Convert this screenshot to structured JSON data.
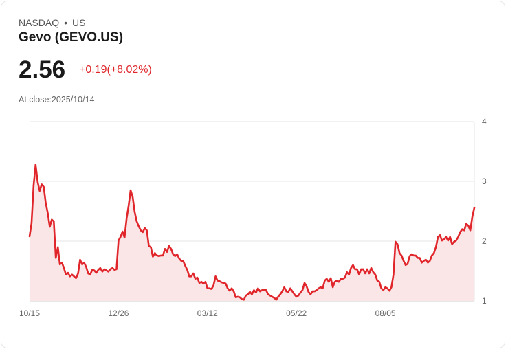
{
  "header": {
    "exchange": "NASDAQ",
    "separator": "•",
    "region": "US",
    "title": "Gevo (GEVO.US)",
    "price": "2.56",
    "change": "+0.19(+8.02%)",
    "close_label": "At close:2025/10/14"
  },
  "colors": {
    "line": "#e0262b",
    "fill": "#fbe6e7",
    "grid": "#e6e6e6"
  },
  "chart_data": {
    "type": "area",
    "title": "Gevo (GEVO.US)",
    "ylim": [
      1,
      4
    ],
    "yticks": [
      "4",
      "3",
      "2",
      "1"
    ],
    "ytick_values": [
      4,
      3,
      2,
      1
    ],
    "xticks": [
      "10/15",
      "12/26",
      "03/12",
      "05/22",
      "08/05"
    ],
    "xtick_fractions": [
      0,
      0.2,
      0.4,
      0.6,
      0.8
    ],
    "grid": true,
    "values": [
      2.08,
      2.3,
      2.93,
      3.28,
      2.99,
      2.84,
      2.95,
      2.91,
      2.64,
      2.47,
      2.24,
      2.36,
      2.33,
      1.72,
      1.9,
      1.61,
      1.64,
      1.55,
      1.44,
      1.47,
      1.41,
      1.44,
      1.41,
      1.38,
      1.46,
      1.69,
      1.61,
      1.64,
      1.57,
      1.46,
      1.44,
      1.52,
      1.51,
      1.47,
      1.52,
      1.55,
      1.49,
      1.53,
      1.51,
      1.49,
      1.53,
      1.55,
      1.52,
      1.53,
      2.01,
      2.07,
      2.16,
      2.06,
      2.38,
      2.59,
      2.85,
      2.74,
      2.49,
      2.33,
      2.25,
      2.18,
      2.15,
      2.22,
      2.18,
      1.92,
      1.9,
      1.74,
      1.8,
      1.76,
      1.75,
      1.76,
      1.76,
      1.87,
      1.82,
      1.92,
      1.87,
      1.78,
      1.75,
      1.78,
      1.71,
      1.67,
      1.67,
      1.59,
      1.52,
      1.41,
      1.41,
      1.46,
      1.37,
      1.39,
      1.3,
      1.32,
      1.29,
      1.32,
      1.21,
      1.21,
      1.2,
      1.26,
      1.41,
      1.34,
      1.33,
      1.31,
      1.3,
      1.29,
      1.21,
      1.17,
      1.21,
      1.16,
      1.06,
      1.07,
      1.06,
      1.03,
      1.02,
      1.09,
      1.11,
      1.15,
      1.11,
      1.18,
      1.14,
      1.21,
      1.16,
      1.18,
      1.18,
      1.18,
      1.11,
      1.09,
      1.07,
      1.05,
      1.02,
      1.07,
      1.11,
      1.16,
      1.23,
      1.16,
      1.15,
      1.21,
      1.16,
      1.11,
      1.07,
      1.09,
      1.14,
      1.18,
      1.3,
      1.25,
      1.15,
      1.11,
      1.16,
      1.16,
      1.18,
      1.21,
      1.23,
      1.21,
      1.34,
      1.37,
      1.32,
      1.38,
      1.23,
      1.32,
      1.34,
      1.32,
      1.37,
      1.37,
      1.39,
      1.48,
      1.44,
      1.55,
      1.6,
      1.53,
      1.53,
      1.44,
      1.53,
      1.53,
      1.46,
      1.53,
      1.46,
      1.55,
      1.48,
      1.44,
      1.34,
      1.32,
      1.21,
      1.18,
      1.23,
      1.21,
      1.17,
      1.23,
      1.44,
      1.99,
      1.95,
      1.8,
      1.76,
      1.67,
      1.6,
      1.62,
      1.75,
      1.78,
      1.76,
      1.76,
      1.72,
      1.72,
      1.64,
      1.67,
      1.69,
      1.64,
      1.67,
      1.76,
      1.8,
      1.9,
      2.07,
      2.1,
      2.01,
      2.03,
      2.07,
      2.01,
      2.07,
      1.95,
      1.99,
      2.01,
      2.07,
      2.15,
      2.2,
      2.18,
      2.29,
      2.26,
      2.18,
      2.41,
      2.56
    ]
  }
}
